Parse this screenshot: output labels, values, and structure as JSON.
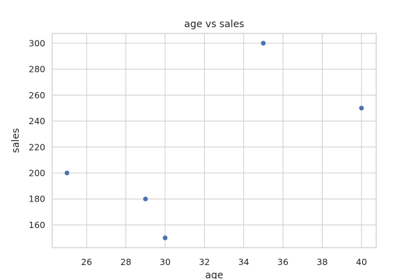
{
  "chart_data": {
    "type": "scatter",
    "title": "age vs sales",
    "xlabel": "age",
    "ylabel": "sales",
    "x": [
      25,
      29,
      30,
      35,
      40
    ],
    "y": [
      200,
      180,
      150,
      300,
      250
    ],
    "xlim": [
      24.25,
      40.75
    ],
    "ylim": [
      142.5,
      307.5
    ],
    "xticks": [
      26,
      28,
      30,
      32,
      34,
      36,
      38,
      40
    ],
    "yticks": [
      160,
      180,
      200,
      220,
      240,
      260,
      280,
      300
    ],
    "grid": true,
    "colors": {
      "point": "#4c72b0",
      "grid": "#cccccc",
      "text": "#262626"
    }
  }
}
